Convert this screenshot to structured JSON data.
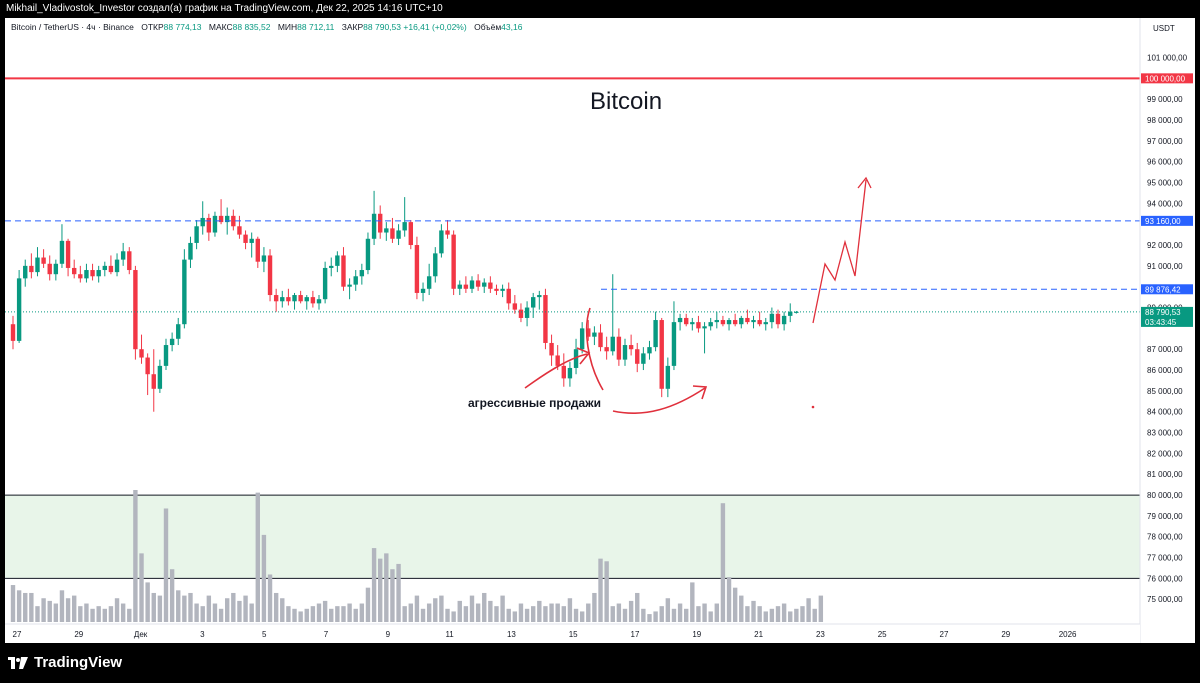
{
  "header": {
    "caption": "Mikhail_Vladivostok_Investor создал(а) график на TradingView.com, Дек 22, 2025 14:16 UTC+10"
  },
  "symbol": {
    "name": "Bitcoin / TetherUS · 4ч · Binance",
    "open_label": "ОТКР",
    "open": "88 774,13",
    "high_label": "МАКС",
    "high": "88 835,52",
    "low_label": "МИН",
    "low": "88 712,11",
    "close_label": "ЗАКР",
    "close": "88 790,53",
    "change": "+16,41 (+0,02%)",
    "volume_label": "Объём",
    "volume": "43,16"
  },
  "currency": "USDT",
  "title": "Bitcoin",
  "annotation": "агрессивные продажи",
  "brand": "TradingView",
  "price_axis": {
    "tick_labels": [
      "101 000,00",
      "99 000,00",
      "98 000,00",
      "97 000,00",
      "96 000,00",
      "95 000,00",
      "94 000,00",
      "92 000,00",
      "91 000,00",
      "89 000,00",
      "87 000,00",
      "86 000,00",
      "85 000,00",
      "84 000,00",
      "83 000,00",
      "82 000,00",
      "81 000,00",
      "80 000,00",
      "79 000,00",
      "78 000,00",
      "77 000,00",
      "76 000,00",
      "75 000,00"
    ],
    "tags": [
      {
        "text": "100 000,00",
        "color": "#f23645"
      },
      {
        "text": "93 160,00",
        "color": "#2962ff"
      },
      {
        "text": "89 876,42",
        "color": "#2962ff"
      },
      {
        "text": "88 790,53",
        "text2": "03:43:45",
        "color": "#089981"
      }
    ]
  },
  "time_axis": {
    "labels": [
      "27",
      "29",
      "Дек",
      "3",
      "5",
      "7",
      "9",
      "11",
      "13",
      "15",
      "17",
      "19",
      "21",
      "23",
      "25",
      "27",
      "29",
      "2026"
    ]
  },
  "colors": {
    "up": "#089981",
    "down": "#f23645",
    "level": "#2962ff",
    "resistance": "#f23645",
    "arrow": "#e0303c",
    "volume": "#b2b5be",
    "zone": "#e8f5e9"
  },
  "chart_data": {
    "type": "candlestick",
    "title": "Bitcoin",
    "y_unit": "USDT",
    "ylim": [
      74100,
      101600
    ],
    "horizontal_levels": [
      {
        "value": 100000,
        "style": "solid",
        "color": "#f23645"
      },
      {
        "value": 93160,
        "style": "dashed",
        "color": "#2962ff"
      },
      {
        "value": 89876.42,
        "style": "dashed",
        "color": "#2962ff",
        "from": "15 дек"
      },
      {
        "value": 88790.53,
        "style": "dotted",
        "color": "#089981"
      }
    ],
    "zone": {
      "from": 76000,
      "to": 80000
    },
    "x_labels_days": [
      "27",
      "29",
      "Дек",
      "3",
      "5",
      "7",
      "9",
      "11",
      "13",
      "15",
      "17",
      "19",
      "21",
      "23",
      "25",
      "27",
      "29",
      "2026"
    ],
    "candles": [
      [
        88200,
        88600,
        87000,
        87400
      ],
      [
        87400,
        90800,
        87300,
        90400
      ],
      [
        90400,
        91300,
        90000,
        91000
      ],
      [
        91000,
        91600,
        90400,
        90700
      ],
      [
        90700,
        91900,
        90500,
        91400
      ],
      [
        91400,
        91800,
        90900,
        91100
      ],
      [
        91100,
        91500,
        90300,
        90600
      ],
      [
        90600,
        91300,
        90300,
        91100
      ],
      [
        91100,
        93000,
        90900,
        92200
      ],
      [
        92200,
        92300,
        90500,
        90900
      ],
      [
        90900,
        91300,
        90400,
        90600
      ],
      [
        90600,
        91000,
        90200,
        90400
      ],
      [
        90400,
        91100,
        90200,
        90800
      ],
      [
        90800,
        91100,
        90300,
        90500
      ],
      [
        90500,
        91000,
        90200,
        90800
      ],
      [
        90800,
        91200,
        90500,
        91000
      ],
      [
        91000,
        91500,
        90600,
        90700
      ],
      [
        90700,
        91600,
        90500,
        91300
      ],
      [
        91300,
        92100,
        91000,
        91700
      ],
      [
        91700,
        91900,
        90600,
        90800
      ],
      [
        90800,
        91000,
        86500,
        87000
      ],
      [
        87000,
        87700,
        86300,
        86600
      ],
      [
        86600,
        86800,
        84800,
        85800
      ],
      [
        85800,
        87000,
        84000,
        85100
      ],
      [
        85100,
        86500,
        84900,
        86200
      ],
      [
        86200,
        87500,
        86000,
        87200
      ],
      [
        87200,
        87800,
        86900,
        87500
      ],
      [
        87500,
        88500,
        87200,
        88200
      ],
      [
        88200,
        91800,
        88000,
        91300
      ],
      [
        91300,
        92400,
        90900,
        92100
      ],
      [
        92100,
        93200,
        91800,
        92900
      ],
      [
        92900,
        94100,
        92500,
        93300
      ],
      [
        93300,
        93500,
        92200,
        92600
      ],
      [
        92600,
        93600,
        92400,
        93400
      ],
      [
        93400,
        94200,
        93000,
        93100
      ],
      [
        93100,
        93800,
        92500,
        93400
      ],
      [
        93400,
        93700,
        92700,
        92900
      ],
      [
        92900,
        93400,
        92300,
        92500
      ],
      [
        92500,
        92700,
        91800,
        92100
      ],
      [
        92100,
        92600,
        91400,
        92300
      ],
      [
        92300,
        92400,
        90900,
        91200
      ],
      [
        91200,
        91900,
        90700,
        91500
      ],
      [
        91500,
        91800,
        89300,
        89600
      ],
      [
        89600,
        89900,
        88800,
        89300
      ],
      [
        89300,
        89800,
        89000,
        89500
      ],
      [
        89500,
        89900,
        89100,
        89300
      ],
      [
        89300,
        89700,
        88900,
        89600
      ],
      [
        89600,
        89800,
        89200,
        89300
      ],
      [
        89300,
        89600,
        88900,
        89500
      ],
      [
        89500,
        89800,
        89000,
        89200
      ],
      [
        89200,
        89600,
        88900,
        89400
      ],
      [
        89400,
        91200,
        89200,
        90900
      ],
      [
        90900,
        91400,
        90500,
        91000
      ],
      [
        91000,
        91700,
        90700,
        91500
      ],
      [
        91500,
        91900,
        89800,
        90000
      ],
      [
        90000,
        90400,
        89400,
        90100
      ],
      [
        90100,
        90800,
        89800,
        90500
      ],
      [
        90500,
        91100,
        90100,
        90800
      ],
      [
        90800,
        92600,
        90600,
        92300
      ],
      [
        92300,
        94600,
        92000,
        93500
      ],
      [
        93500,
        93900,
        92300,
        92600
      ],
      [
        92600,
        93100,
        92200,
        92800
      ],
      [
        92800,
        93300,
        92100,
        92300
      ],
      [
        92300,
        93000,
        92000,
        92700
      ],
      [
        92700,
        94300,
        92400,
        93100
      ],
      [
        93100,
        93200,
        91800,
        92000
      ],
      [
        92000,
        92400,
        89400,
        89700
      ],
      [
        89700,
        90200,
        89300,
        89900
      ],
      [
        89900,
        91100,
        89600,
        90500
      ],
      [
        90500,
        91900,
        90200,
        91600
      ],
      [
        91600,
        93000,
        91400,
        92700
      ],
      [
        92700,
        93200,
        92300,
        92500
      ],
      [
        92500,
        92700,
        89600,
        89900
      ],
      [
        89900,
        90300,
        89600,
        90100
      ],
      [
        90100,
        90500,
        89700,
        89900
      ],
      [
        89900,
        90500,
        89700,
        90300
      ],
      [
        90300,
        90600,
        89800,
        90000
      ],
      [
        90000,
        90400,
        89700,
        90200
      ],
      [
        90200,
        90500,
        89700,
        89900
      ],
      [
        89900,
        90100,
        89600,
        89800
      ],
      [
        89800,
        90100,
        89500,
        89900
      ],
      [
        89900,
        90200,
        88900,
        89200
      ],
      [
        89200,
        89600,
        88700,
        88900
      ],
      [
        88900,
        89200,
        88300,
        88500
      ],
      [
        88500,
        89300,
        88100,
        89000
      ],
      [
        89000,
        89700,
        88500,
        89500
      ],
      [
        89500,
        89800,
        88900,
        89600
      ],
      [
        89600,
        89900,
        87000,
        87300
      ],
      [
        87300,
        87700,
        86200,
        86700
      ],
      [
        86700,
        87200,
        86000,
        86200
      ],
      [
        86200,
        86800,
        85200,
        85600
      ],
      [
        85600,
        86400,
        85200,
        86100
      ],
      [
        86100,
        87500,
        85800,
        87000
      ],
      [
        87000,
        88300,
        86800,
        88000
      ],
      [
        88000,
        88400,
        87400,
        87600
      ],
      [
        87600,
        88100,
        87200,
        87800
      ],
      [
        87800,
        88200,
        86900,
        87100
      ],
      [
        87100,
        87600,
        86500,
        86900
      ],
      [
        86900,
        90600,
        86700,
        87600
      ],
      [
        87600,
        88000,
        86200,
        86500
      ],
      [
        86500,
        87500,
        86200,
        87200
      ],
      [
        87200,
        87700,
        86700,
        87000
      ],
      [
        87000,
        87300,
        85900,
        86300
      ],
      [
        86300,
        87100,
        86000,
        86800
      ],
      [
        86800,
        87400,
        86500,
        87100
      ],
      [
        87100,
        88800,
        86900,
        88400
      ],
      [
        88400,
        88500,
        84700,
        85100
      ],
      [
        85100,
        86600,
        84700,
        86200
      ],
      [
        86200,
        89300,
        86000,
        88300
      ],
      [
        88300,
        88700,
        87900,
        88500
      ],
      [
        88500,
        88700,
        88100,
        88200
      ],
      [
        88200,
        88500,
        87900,
        88300
      ],
      [
        88300,
        88600,
        87800,
        88000
      ],
      [
        88000,
        88300,
        86800,
        88100
      ],
      [
        88100,
        88500,
        87900,
        88300
      ],
      [
        88300,
        88800,
        88000,
        88400
      ],
      [
        88400,
        88600,
        88100,
        88200
      ],
      [
        88200,
        88500,
        87900,
        88400
      ],
      [
        88400,
        88700,
        88100,
        88200
      ],
      [
        88200,
        88600,
        88000,
        88500
      ],
      [
        88500,
        88900,
        88200,
        88300
      ],
      [
        88300,
        88600,
        88000,
        88400
      ],
      [
        88400,
        88800,
        88100,
        88200
      ],
      [
        88200,
        88500,
        87900,
        88300
      ],
      [
        88300,
        89000,
        88000,
        88700
      ],
      [
        88700,
        88900,
        88000,
        88200
      ],
      [
        88200,
        88800,
        87900,
        88600
      ],
      [
        88600,
        89200,
        88300,
        88800
      ],
      [
        88774.13,
        88835.52,
        88712.11,
        88790.53
      ]
    ],
    "volume_scale_max": 100,
    "volumes": [
      28,
      24,
      22,
      22,
      12,
      18,
      16,
      14,
      24,
      18,
      20,
      12,
      14,
      10,
      12,
      10,
      12,
      18,
      14,
      10,
      100,
      52,
      30,
      22,
      20,
      86,
      40,
      24,
      20,
      22,
      14,
      12,
      20,
      14,
      10,
      18,
      22,
      16,
      20,
      14,
      98,
      66,
      36,
      22,
      18,
      12,
      10,
      8,
      10,
      12,
      14,
      16,
      10,
      12,
      12,
      14,
      10,
      14,
      26,
      56,
      48,
      52,
      40,
      44,
      12,
      14,
      20,
      10,
      14,
      18,
      20,
      10,
      8,
      16,
      12,
      20,
      14,
      22,
      16,
      12,
      20,
      10,
      8,
      14,
      10,
      12,
      16,
      12,
      14,
      14,
      12,
      18,
      10,
      8,
      14,
      22,
      48,
      46,
      12,
      14,
      10,
      16,
      22,
      10,
      6,
      8,
      12,
      18,
      10,
      14,
      10,
      30,
      12,
      14,
      8,
      14,
      90,
      34,
      26,
      20,
      12,
      16,
      12,
      8,
      10,
      12,
      14,
      8,
      10,
      12,
      18,
      10,
      20
    ]
  }
}
